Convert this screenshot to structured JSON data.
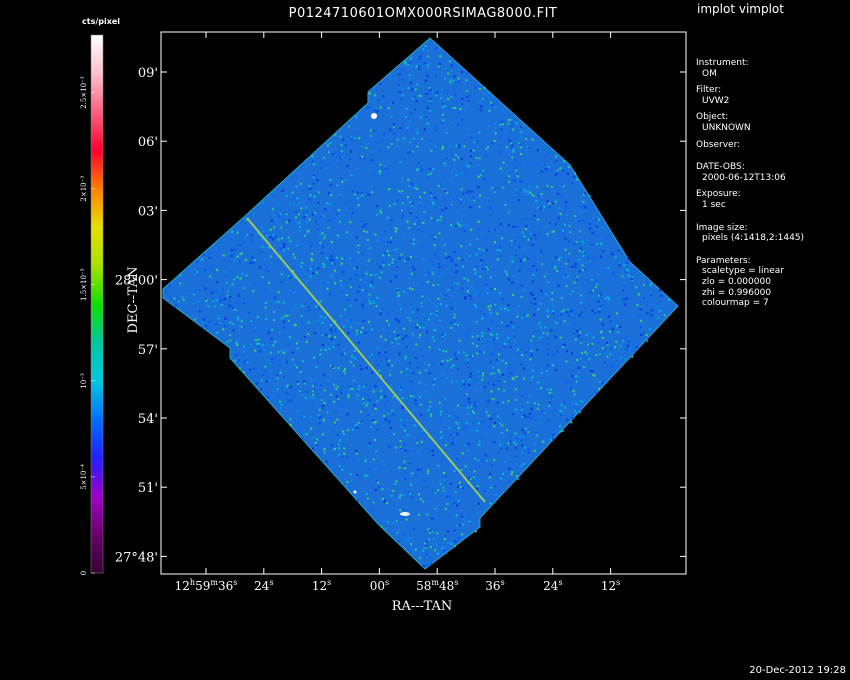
{
  "app": {
    "title": "implot vimplot"
  },
  "timestamp": "20-Dec-2012 19:28",
  "colorbar": {
    "unit_label": "cts/pixel",
    "tick_labels": [
      "0",
      "5×10⁻⁴",
      "10⁻³",
      "1.5×10⁻³",
      "2×10⁻³",
      "2.5×10⁻³"
    ],
    "colormap": [
      "#330033",
      "#6a006a",
      "#a000c8",
      "#2020ff",
      "#0070ff",
      "#00c8e0",
      "#00c8a0",
      "#10e000",
      "#a8e000",
      "#e8e000",
      "#ff8000",
      "#ff0030",
      "#ff6080",
      "#ffc0cc",
      "#ffffff"
    ]
  },
  "info": {
    "instrument_label": "Instrument:",
    "instrument": "OM",
    "filter_label": "Filter:",
    "filter": "UVW2",
    "object_label": "Object:",
    "object": "UNKNOWN",
    "observer_label": "Observer:",
    "date_label": "DATE-OBS:",
    "date": "2000-06-12T13:06",
    "exposure_label": "Exposure:",
    "exposure": "1 sec",
    "size_label": "Image size:",
    "size": "pixels (4:1418,2:1445)",
    "params_label": "Parameters:",
    "scaletype": "scaletype = linear",
    "zlo": "zlo = 0.000000",
    "zhi": "zhi = 0.996000",
    "colourmap": "colourmap =    7"
  },
  "chart_data": {
    "type": "heatmap",
    "title": "P0124710601OMX000RSIMAG8000.FIT",
    "xlabel": "RA---TAN",
    "ylabel": "DEC--TAN",
    "x_ticks": [
      {
        "h": "12",
        "m": "59",
        "s": "36",
        "text": ""
      },
      {
        "text": "24",
        "unit": "s"
      },
      {
        "text": "12",
        "unit": "s"
      },
      {
        "text": "00",
        "unit": "s"
      },
      {
        "m": "58",
        "s": "48",
        "text": ""
      },
      {
        "text": "36",
        "unit": "s"
      },
      {
        "text": "24",
        "unit": "s"
      },
      {
        "text": "12",
        "unit": "s"
      }
    ],
    "y_ticks": [
      "09'",
      "06'",
      "03'",
      "28°00'",
      "57'",
      "54'",
      "51'",
      "27°48'"
    ],
    "z_range": [
      0,
      0.0025
    ],
    "scale": "linear",
    "dominant_level_fraction": 0.35
  }
}
